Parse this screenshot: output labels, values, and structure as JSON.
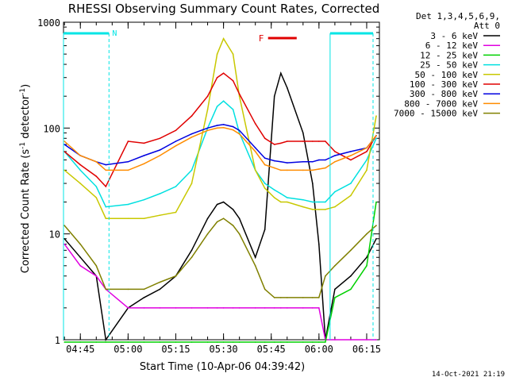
{
  "chart_data": {
    "type": "line",
    "title": "RHESSI Observing Summary Count Rates, Corrected",
    "xlabel": "Start Time (10-Apr-06 04:39:42)",
    "ylabel": "Corrected Count Rate (s⁻¹ detector⁻¹)",
    "ylabel_main": "Corrected Count Rate (s",
    "ylabel_mid": " detector",
    "ylabel_end": ")",
    "ylabel_sup": "-1",
    "yscale": "log",
    "ylim": [
      1,
      1000
    ],
    "xlim": [
      "04:39:42",
      "06:19:00"
    ],
    "x_tick_labels": [
      "04:45",
      "05:00",
      "05:15",
      "05:30",
      "05:45",
      "06:00",
      "06:15"
    ],
    "y_tick_labels": [
      "1",
      "10",
      "100",
      "1000"
    ],
    "legend_header": [
      "Det 1,3,4,5,6,9,",
      "Att 0"
    ],
    "legend_position": "right",
    "timestamp": "14-Oct-2021 21:19",
    "annotations": [
      {
        "text": "N",
        "time": "04:54",
        "kind": "night",
        "color": "#00e5e5"
      },
      {
        "text": "F",
        "time": "05:47",
        "kind": "flare",
        "color": "#e00000"
      }
    ],
    "night_markers": {
      "start_times": [
        "04:39:42",
        "06:03:30"
      ],
      "end_times": [
        "04:54:00",
        "06:17:00"
      ]
    },
    "flare_bar": {
      "start": "05:44",
      "end": "05:53"
    },
    "x": [
      "04:40",
      "04:45",
      "04:50",
      "04:53",
      "05:00",
      "05:05",
      "05:10",
      "05:15",
      "05:20",
      "05:25",
      "05:28",
      "05:30",
      "05:33",
      "05:35",
      "05:40",
      "05:43",
      "05:46",
      "05:48",
      "05:50",
      "05:55",
      "05:58",
      "06:00",
      "06:02",
      "06:05",
      "06:10",
      "06:15",
      "06:18"
    ],
    "series": [
      {
        "name": "3 - 6 keV",
        "color": "#000000",
        "values": [
          9,
          6,
          4,
          1,
          2,
          2.5,
          3,
          4,
          7,
          14,
          19,
          20,
          17,
          14,
          6,
          11,
          200,
          330,
          240,
          90,
          30,
          8,
          1,
          3,
          4,
          6,
          9
        ]
      },
      {
        "name": "6 - 12 keV",
        "color": "#e000e0",
        "values": [
          8,
          5,
          4,
          3,
          2,
          2,
          2,
          2,
          2,
          2,
          2,
          2,
          2,
          2,
          2,
          2,
          2,
          2,
          2,
          2,
          2,
          2,
          1,
          1,
          1,
          1,
          1
        ]
      },
      {
        "name": "12 - 25 keV",
        "color": "#00d000",
        "values": [
          0.8,
          0.8,
          0.8,
          0.8,
          0.8,
          0.8,
          0.8,
          0.8,
          0.8,
          0.8,
          0.8,
          0.8,
          0.8,
          0.8,
          0.8,
          0.8,
          0.8,
          0.8,
          0.8,
          0.8,
          0.8,
          0.8,
          0.8,
          2.5,
          3,
          5,
          20
        ]
      },
      {
        "name": "25 - 50 keV",
        "color": "#00e0e0",
        "values": [
          60,
          40,
          28,
          18,
          19,
          21,
          24,
          28,
          40,
          100,
          160,
          180,
          150,
          90,
          40,
          30,
          26,
          24,
          22,
          21,
          20,
          20,
          20,
          25,
          30,
          50,
          80
        ]
      },
      {
        "name": "50 - 100 keV",
        "color": "#c8c800",
        "values": [
          40,
          30,
          22,
          14,
          14,
          14,
          15,
          16,
          30,
          150,
          500,
          700,
          500,
          200,
          40,
          27,
          22,
          20,
          20,
          18,
          17,
          17,
          17,
          18,
          23,
          40,
          130
        ]
      },
      {
        "name": "100 - 300 keV",
        "color": "#e00000",
        "values": [
          60,
          45,
          35,
          28,
          75,
          72,
          80,
          95,
          130,
          200,
          300,
          330,
          280,
          210,
          110,
          80,
          70,
          72,
          75,
          75,
          75,
          75,
          75,
          60,
          50,
          60,
          85
        ]
      },
      {
        "name": "300 - 800 keV",
        "color": "#0000e0",
        "values": [
          70,
          55,
          48,
          45,
          48,
          55,
          62,
          75,
          88,
          100,
          106,
          108,
          103,
          95,
          65,
          52,
          49,
          48,
          47,
          48,
          48,
          50,
          50,
          55,
          60,
          65,
          85
        ]
      },
      {
        "name": "800 - 7000 keV",
        "color": "#ff8c00",
        "values": [
          75,
          55,
          48,
          40,
          40,
          46,
          55,
          68,
          82,
          95,
          100,
          101,
          96,
          88,
          60,
          45,
          42,
          40,
          40,
          40,
          40,
          41,
          42,
          48,
          55,
          65,
          85
        ]
      },
      {
        "name": "7000 - 15000 keV",
        "color": "#808000",
        "values": [
          12,
          8,
          5,
          3,
          3,
          3,
          3.5,
          4,
          6,
          10,
          13,
          14,
          12,
          10,
          5,
          3,
          2.5,
          2.5,
          2.5,
          2.5,
          2.5,
          2.5,
          4,
          5,
          7,
          10,
          12
        ]
      }
    ]
  }
}
